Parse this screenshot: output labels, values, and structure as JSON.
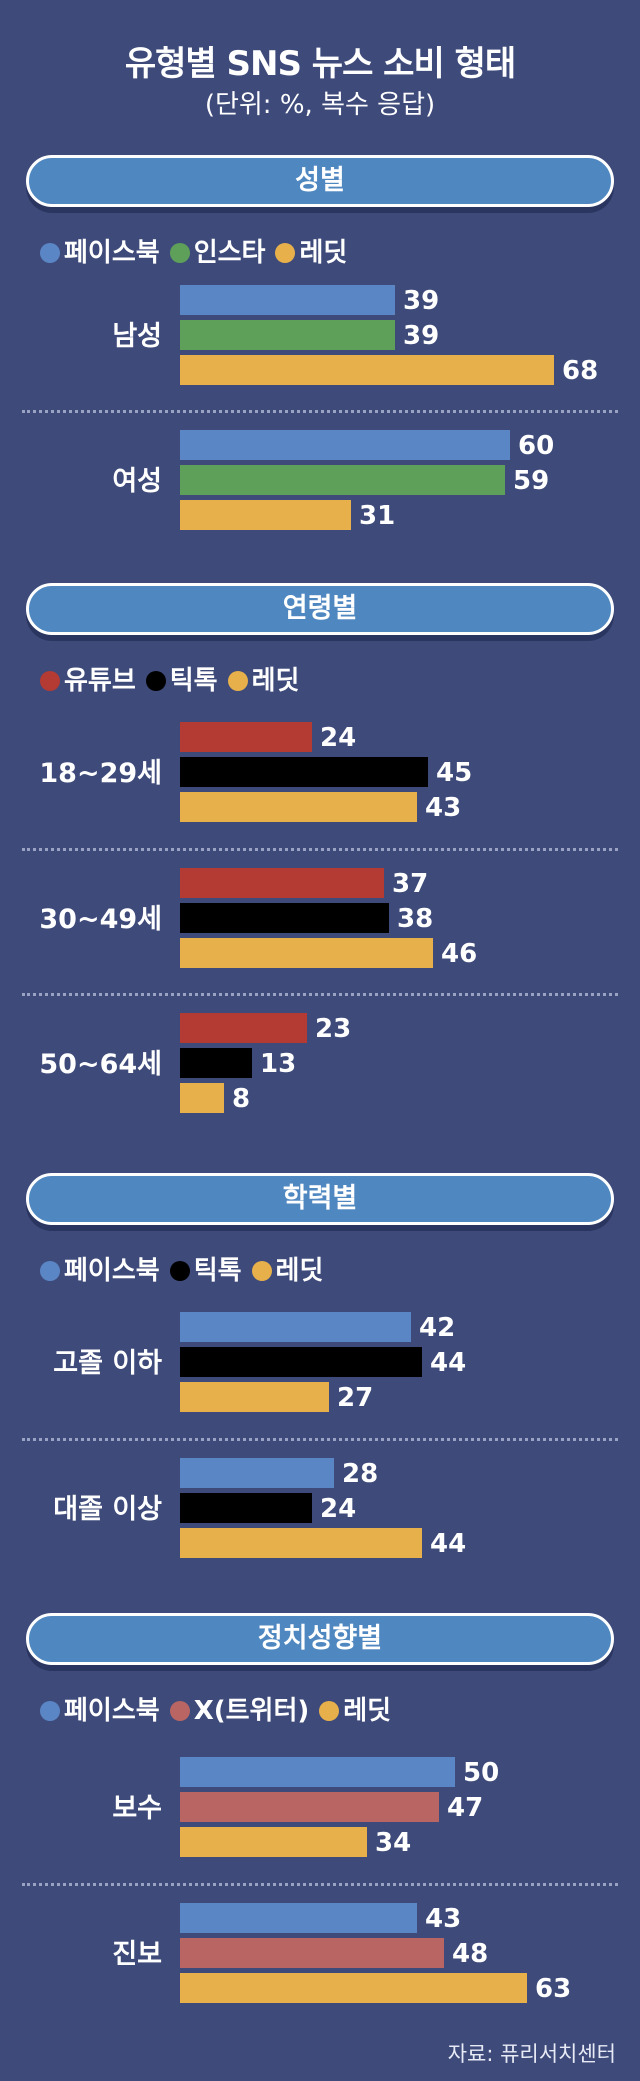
{
  "page": {
    "title": "유형별 SNS 뉴스 소비 형태",
    "subtitle": "(단위: %, 복수 응답)",
    "source": "자료: 퓨리서치센터"
  },
  "colors": {
    "facebook": "#5b86c5",
    "instagram": "#5ea05a",
    "reddit": "#e8b04b",
    "youtube": "#b43a34",
    "tiktok": "#000000",
    "x": "#b86564"
  },
  "chart_data": [
    {
      "type": "bar",
      "title": "성별",
      "categories": [
        "남성",
        "여성"
      ],
      "series": [
        {
          "name": "페이스북",
          "color": "#5b86c5",
          "values": [
            39,
            60
          ]
        },
        {
          "name": "인스타",
          "color": "#5ea05a",
          "values": [
            39,
            59
          ]
        },
        {
          "name": "레딧",
          "color": "#e8b04b",
          "values": [
            68,
            31
          ]
        }
      ]
    },
    {
      "type": "bar",
      "title": "연령별",
      "categories": [
        "18~29세",
        "30~49세",
        "50~64세"
      ],
      "series": [
        {
          "name": "유튜브",
          "color": "#b43a34",
          "values": [
            24,
            37,
            23
          ]
        },
        {
          "name": "틱톡",
          "color": "#000000",
          "values": [
            45,
            38,
            13
          ]
        },
        {
          "name": "레딧",
          "color": "#e8b04b",
          "values": [
            43,
            46,
            8
          ]
        }
      ]
    },
    {
      "type": "bar",
      "title": "학력별",
      "categories": [
        "고졸 이하",
        "대졸 이상"
      ],
      "series": [
        {
          "name": "페이스북",
          "color": "#5b86c5",
          "values": [
            42,
            28
          ]
        },
        {
          "name": "틱톡",
          "color": "#000000",
          "values": [
            44,
            24
          ]
        },
        {
          "name": "레딧",
          "color": "#e8b04b",
          "values": [
            27,
            44
          ]
        }
      ]
    },
    {
      "type": "bar",
      "title": "정치성향별",
      "categories": [
        "보수",
        "진보"
      ],
      "series": [
        {
          "name": "페이스북",
          "color": "#5b86c5",
          "values": [
            50,
            43
          ]
        },
        {
          "name": "X(트위터)",
          "color": "#b86564",
          "values": [
            47,
            48
          ]
        },
        {
          "name": "레딧",
          "color": "#e8b04b",
          "values": [
            34,
            63
          ]
        }
      ]
    }
  ]
}
